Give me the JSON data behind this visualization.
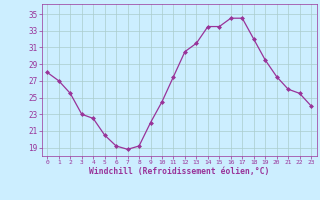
{
  "x": [
    0,
    1,
    2,
    3,
    4,
    5,
    6,
    7,
    8,
    9,
    10,
    11,
    12,
    13,
    14,
    15,
    16,
    17,
    18,
    19,
    20,
    21,
    22,
    23
  ],
  "y": [
    28,
    27,
    25.5,
    23,
    22.5,
    20.5,
    19.2,
    18.8,
    19.2,
    22,
    24.5,
    27.5,
    30.5,
    31.5,
    33.5,
    33.5,
    34.5,
    34.5,
    32,
    29.5,
    27.5,
    26,
    25.5,
    24
  ],
  "line_color": "#993399",
  "marker": "D",
  "marker_size": 2,
  "background_color": "#cceeff",
  "grid_color": "#aacccc",
  "xlabel": "Windchill (Refroidissement éolien,°C)",
  "xlabel_color": "#993399",
  "yticks": [
    19,
    21,
    23,
    25,
    27,
    29,
    31,
    33,
    35
  ],
  "xticks": [
    0,
    1,
    2,
    3,
    4,
    5,
    6,
    7,
    8,
    9,
    10,
    11,
    12,
    13,
    14,
    15,
    16,
    17,
    18,
    19,
    20,
    21,
    22,
    23
  ],
  "ylim": [
    18.0,
    36.2
  ],
  "xlim": [
    -0.5,
    23.5
  ]
}
